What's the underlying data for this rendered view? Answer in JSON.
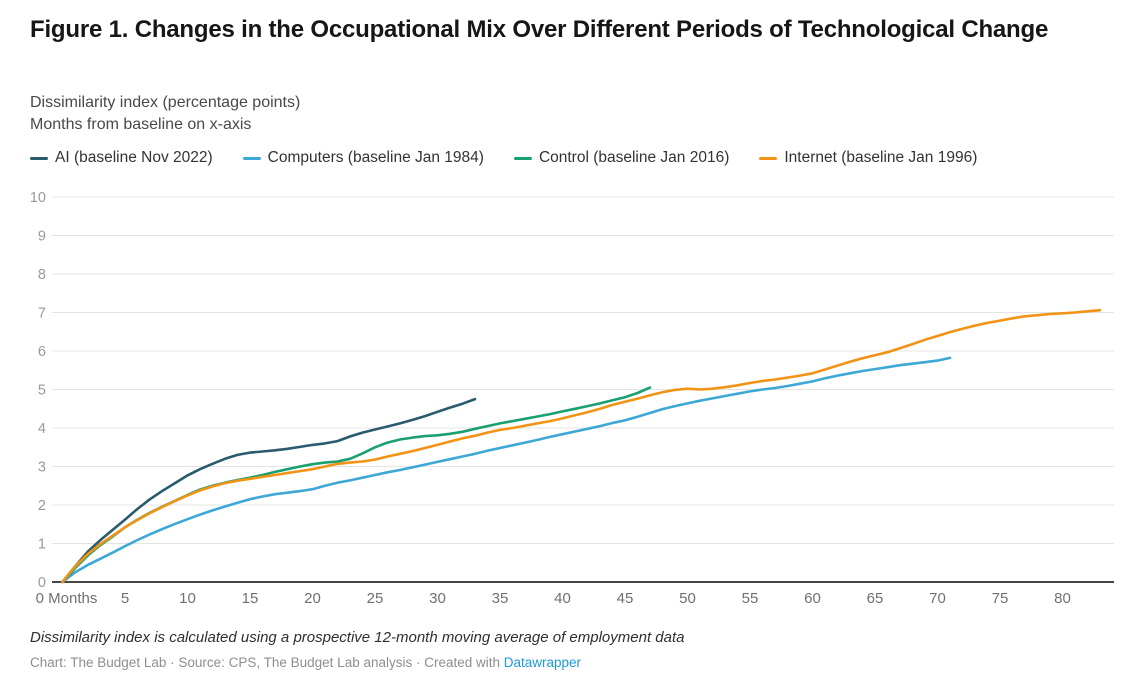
{
  "header": {
    "title": "Figure 1. Changes in the Occupational Mix Over Different Periods of Technological Change",
    "description_line1": "Dissimilarity index (percentage points)",
    "description_line2": "Months from baseline on x-axis"
  },
  "chart_data": {
    "type": "line",
    "title": "Figure 1. Changes in the Occupational Mix Over Different Periods of Technological Change",
    "xlabel": "Months from baseline",
    "ylabel": "Dissimilarity index (percentage points)",
    "ylim": [
      0,
      10
    ],
    "xlim": [
      0,
      84
    ],
    "grid": "horizontal",
    "legend_position": "top",
    "y_ticks": [
      0,
      1,
      2,
      3,
      4,
      5,
      6,
      7,
      8,
      9,
      10
    ],
    "x_ticks": [
      0,
      5,
      10,
      15,
      20,
      25,
      30,
      35,
      40,
      45,
      50,
      55,
      60,
      65,
      70,
      75,
      80
    ],
    "x_tick_labels": [
      "0 Months",
      "5",
      "10",
      "15",
      "20",
      "25",
      "30",
      "35",
      "40",
      "45",
      "50",
      "55",
      "60",
      "65",
      "70",
      "75",
      "80"
    ],
    "x_unit": "months",
    "series": [
      {
        "id": "ai",
        "name": "AI (baseline Nov 2022)",
        "color": "#2a5a6e",
        "x_start": 0,
        "values": [
          0,
          0.4,
          0.78,
          1.08,
          1.35,
          1.62,
          1.9,
          2.15,
          2.37,
          2.57,
          2.77,
          2.93,
          3.07,
          3.2,
          3.3,
          3.36,
          3.39,
          3.42,
          3.46,
          3.51,
          3.56,
          3.6,
          3.66,
          3.78,
          3.88,
          3.96,
          4.04,
          4.12,
          4.21,
          4.31,
          4.42,
          4.53,
          4.63,
          4.75
        ]
      },
      {
        "id": "computers",
        "name": "Computers (baseline Jan 1984)",
        "color": "#3da8d5",
        "x_start": 0,
        "values": [
          0,
          0.25,
          0.44,
          0.6,
          0.76,
          0.93,
          1.09,
          1.24,
          1.38,
          1.51,
          1.63,
          1.75,
          1.86,
          1.96,
          2.06,
          2.15,
          2.22,
          2.28,
          2.32,
          2.36,
          2.41,
          2.5,
          2.58,
          2.64,
          2.71,
          2.78,
          2.85,
          2.91,
          2.98,
          3.05,
          3.12,
          3.19,
          3.26,
          3.33,
          3.41,
          3.48,
          3.55,
          3.62,
          3.69,
          3.77,
          3.84,
          3.91,
          3.98,
          4.05,
          4.13,
          4.2,
          4.29,
          4.39,
          4.49,
          4.57,
          4.64,
          4.71,
          4.77,
          4.83,
          4.89,
          4.95,
          5.0,
          5.04,
          5.09,
          5.15,
          5.21,
          5.29,
          5.36,
          5.42,
          5.48,
          5.53,
          5.58,
          5.63,
          5.67,
          5.71,
          5.75,
          5.82
        ]
      },
      {
        "id": "control",
        "name": "Control (baseline Jan 2016)",
        "color": "#18a06e",
        "x_start": 0,
        "values": [
          0,
          0.36,
          0.68,
          0.95,
          1.18,
          1.42,
          1.62,
          1.8,
          1.96,
          2.11,
          2.26,
          2.4,
          2.5,
          2.58,
          2.65,
          2.71,
          2.78,
          2.86,
          2.93,
          3.0,
          3.06,
          3.1,
          3.13,
          3.2,
          3.34,
          3.5,
          3.62,
          3.7,
          3.75,
          3.79,
          3.81,
          3.85,
          3.9,
          3.98,
          4.05,
          4.12,
          4.18,
          4.24,
          4.3,
          4.36,
          4.43,
          4.5,
          4.57,
          4.64,
          4.72,
          4.8,
          4.91,
          5.05
        ]
      },
      {
        "id": "internet",
        "name": "Internet (baseline Jan 1996)",
        "color": "#f29315",
        "x_start": 0,
        "values": [
          0,
          0.4,
          0.72,
          0.98,
          1.2,
          1.42,
          1.61,
          1.79,
          1.95,
          2.1,
          2.25,
          2.38,
          2.48,
          2.57,
          2.63,
          2.68,
          2.73,
          2.78,
          2.83,
          2.88,
          2.93,
          3.0,
          3.07,
          3.1,
          3.13,
          3.18,
          3.26,
          3.33,
          3.4,
          3.48,
          3.56,
          3.65,
          3.73,
          3.8,
          3.88,
          3.95,
          4.0,
          4.06,
          4.12,
          4.18,
          4.25,
          4.33,
          4.41,
          4.5,
          4.6,
          4.68,
          4.76,
          4.85,
          4.93,
          4.99,
          5.02,
          5.0,
          5.02,
          5.06,
          5.11,
          5.17,
          5.22,
          5.26,
          5.31,
          5.36,
          5.42,
          5.52,
          5.62,
          5.72,
          5.81,
          5.89,
          5.97,
          6.07,
          6.18,
          6.29,
          6.39,
          6.49,
          6.58,
          6.66,
          6.73,
          6.79,
          6.85,
          6.9,
          6.93,
          6.96,
          6.98,
          7.0,
          7.03,
          7.06
        ]
      }
    ],
    "colors": {
      "gridline": "#e4e4e4",
      "baseline": "#2c2c2c",
      "y_tick_label": "#999999",
      "x_tick_label": "#707070"
    }
  },
  "footer": {
    "note": "Dissimilarity index is calculated using a prospective 12-month moving average of employment data",
    "byline_prefix": "Chart: The Budget Lab · Source: CPS, The Budget Lab analysis · Created with ",
    "byline_link": "Datawrapper"
  }
}
